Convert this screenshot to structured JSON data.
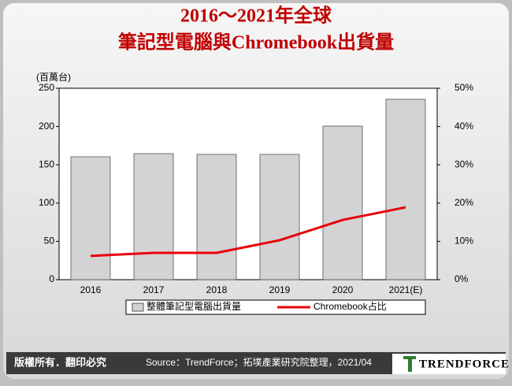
{
  "chart_data": {
    "type": "bar-line",
    "title": [
      "2016～2021年全球",
      "筆記型電腦與Chromebook出貨量"
    ],
    "y_label": "(百萬台)",
    "categories": [
      "2016",
      "2017",
      "2018",
      "2019",
      "2020",
      "2021(E)"
    ],
    "series": [
      {
        "name": "整體筆記型電腦出貨量",
        "type": "bar",
        "color": "#d3d3d3",
        "values": [
          160.5,
          164.6,
          163.6,
          163.6,
          200.6,
          235.6
        ]
      },
      {
        "name": "Chromebook占比",
        "type": "line",
        "axis": "y2",
        "color": "#e8000b",
        "values": [
          6.2,
          7.0,
          7.0,
          10.3,
          15.6,
          18.9
        ]
      }
    ],
    "ylim": [
      0,
      250
    ],
    "yticks": [
      0,
      50,
      100,
      150,
      200,
      250
    ],
    "y2lim": [
      0,
      50
    ],
    "y2ticks": [
      {
        "value": 0,
        "label": "0%"
      },
      {
        "value": 10,
        "label": "10%"
      },
      {
        "value": 20,
        "label": "20%"
      },
      {
        "value": 30,
        "label": "30%"
      },
      {
        "value": 40,
        "label": "40%"
      },
      {
        "value": 50,
        "label": "50%"
      }
    ],
    "legend": "bottom"
  },
  "footer": {
    "copyright": "版權所有．翻印必究",
    "source": "Source：TrendForce；拓墣產業研究院整理，2021/04",
    "logo": "TrendForce"
  }
}
